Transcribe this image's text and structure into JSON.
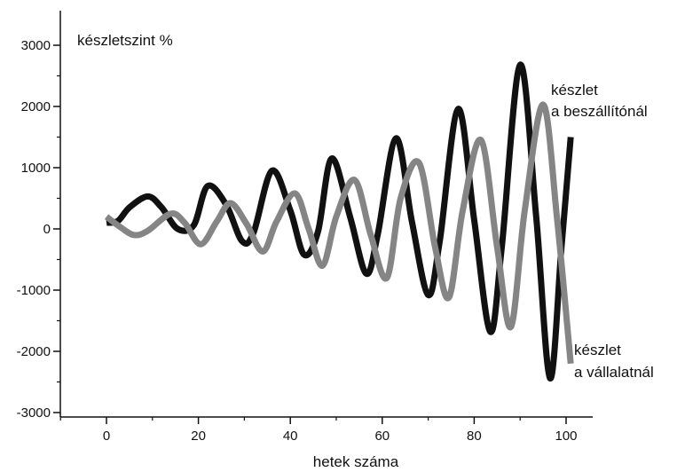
{
  "chart_data": {
    "type": "line",
    "title": "",
    "ylabel": "készletszint %",
    "xlabel": "hetek száma",
    "xlim": [
      -10,
      108
    ],
    "ylim": [
      -3000,
      3300
    ],
    "x_ticks": [
      0,
      20,
      40,
      60,
      80,
      100
    ],
    "x_tick_labels": [
      "0",
      "20",
      "40",
      "60",
      "80",
      "100"
    ],
    "y_ticks": [
      3000,
      2000,
      1000,
      0,
      -1000,
      -2000,
      -3000
    ],
    "y_tick_labels": [
      "3000",
      "2000",
      "1000",
      "0",
      "-1000",
      "-2000",
      "-3000"
    ],
    "grid": false,
    "colors": {
      "black_series": "#111111",
      "gray_series": "#858585"
    },
    "annotations": [
      {
        "id": "supplier",
        "lines": [
          "készlet",
          "a beszállítónál"
        ]
      },
      {
        "id": "company",
        "lines": [
          "készlet",
          "a vállalatnál"
        ]
      }
    ],
    "series": [
      {
        "color": "#111111",
        "points": [
          [
            0,
            100
          ],
          [
            2.5,
            130
          ],
          [
            5,
            350
          ],
          [
            9,
            530
          ],
          [
            12,
            350
          ],
          [
            15.5,
            0
          ],
          [
            19,
            60
          ],
          [
            22,
            700
          ],
          [
            26,
            400
          ],
          [
            29.5,
            -200
          ],
          [
            32,
            -60
          ],
          [
            36,
            950
          ],
          [
            40,
            300
          ],
          [
            43,
            -420
          ],
          [
            46,
            -50
          ],
          [
            49,
            1150
          ],
          [
            53,
            200
          ],
          [
            56.5,
            -730
          ],
          [
            59,
            -100
          ],
          [
            63,
            1480
          ],
          [
            66.5,
            100
          ],
          [
            70,
            -1080
          ],
          [
            72.5,
            -200
          ],
          [
            76.5,
            1960
          ],
          [
            80,
            150
          ],
          [
            83.5,
            -1680
          ],
          [
            86,
            -300
          ],
          [
            90,
            2680
          ],
          [
            93.5,
            200
          ],
          [
            96.5,
            -2440
          ],
          [
            99,
            -300
          ],
          [
            101,
            1500
          ]
        ]
      },
      {
        "color": "#858585",
        "points": [
          [
            0,
            200
          ],
          [
            3,
            30
          ],
          [
            6,
            -100
          ],
          [
            9,
            -30
          ],
          [
            14,
            250
          ],
          [
            17,
            100
          ],
          [
            20.5,
            -250
          ],
          [
            24,
            120
          ],
          [
            27,
            420
          ],
          [
            30.5,
            80
          ],
          [
            34,
            -370
          ],
          [
            37,
            120
          ],
          [
            41,
            580
          ],
          [
            44,
            0
          ],
          [
            47,
            -600
          ],
          [
            50,
            200
          ],
          [
            54,
            800
          ],
          [
            57.5,
            -100
          ],
          [
            61,
            -800
          ],
          [
            64,
            500
          ],
          [
            68,
            1080
          ],
          [
            71.5,
            -300
          ],
          [
            74.5,
            -1120
          ],
          [
            77.5,
            300
          ],
          [
            81.5,
            1450
          ],
          [
            85,
            -300
          ],
          [
            88,
            -1600
          ],
          [
            91,
            300
          ],
          [
            95,
            2030
          ],
          [
            98,
            200
          ],
          [
            101,
            -2200
          ]
        ]
      }
    ]
  }
}
